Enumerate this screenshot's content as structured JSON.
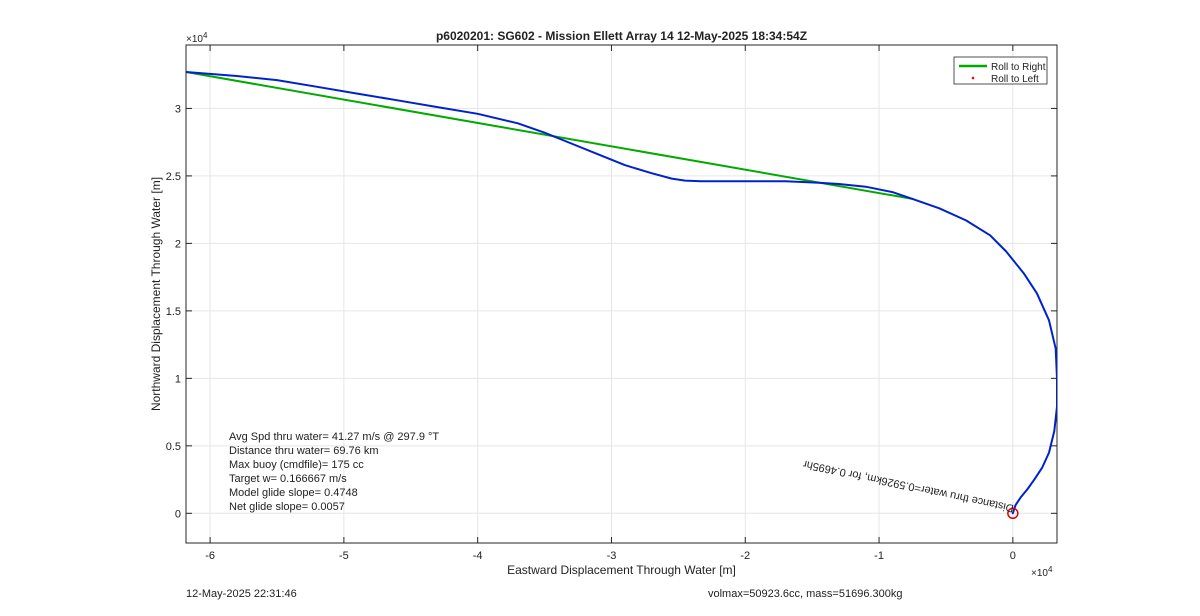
{
  "chart_data": {
    "type": "line",
    "title": "p6020201: SG602 - Mission Ellett Array 14 12-May-2025 18:34:54Z",
    "xlabel": "Eastward Displacement Through Water [m]",
    "ylabel": "Northward Displacement Through Water [m]",
    "x_exponent": "×10",
    "x_exponent_power": "4",
    "y_exponent": "×10",
    "y_exponent_power": "4",
    "xlim": [
      -61800,
      3300
    ],
    "ylim": [
      -2200,
      34700
    ],
    "x_ticks": [
      -60000,
      -50000,
      -40000,
      -30000,
      -20000,
      -10000,
      0
    ],
    "x_tick_labels": [
      "-6",
      "-5",
      "-4",
      "-3",
      "-2",
      "-1",
      "0"
    ],
    "y_ticks": [
      0,
      5000,
      10000,
      15000,
      20000,
      25000,
      30000
    ],
    "y_tick_labels": [
      "0",
      "0.5",
      "1",
      "1.5",
      "2",
      "2.5",
      "3"
    ],
    "grid": true,
    "legend_position": "top-right",
    "legend": [
      {
        "label": "Roll to Right",
        "color": "#00aa00",
        "style": "line"
      },
      {
        "label": "Roll to Left",
        "color": "#ff0000",
        "style": "dot"
      }
    ],
    "series": [
      {
        "name": "Roll to Right",
        "color": "#00aa00",
        "x": [
          -61800,
          -7500
        ],
        "y": [
          32700,
          23300
        ]
      },
      {
        "color": "#0022cc",
        "x": [
          -61800,
          -58000,
          -55000,
          -52000,
          -49000,
          -46000,
          -43000,
          -40000,
          -37000,
          -35000,
          -33000,
          -31000,
          -29000,
          -27000,
          -25500,
          -24500,
          -23300,
          -20000,
          -17000,
          -14500,
          -13000,
          -11000,
          -9000,
          -7500,
          -5500,
          -3500,
          -1700,
          -500,
          800,
          1800,
          2700,
          3200,
          3300,
          3300,
          3100,
          2700,
          2200,
          1600,
          1100,
          600,
          200,
          0
        ],
        "y": [
          32700,
          32400,
          32100,
          31600,
          31100,
          30600,
          30100,
          29600,
          28900,
          28200,
          27400,
          26600,
          25800,
          25200,
          24800,
          24650,
          24600,
          24600,
          24600,
          24500,
          24400,
          24200,
          23800,
          23300,
          22600,
          21700,
          20600,
          19400,
          17800,
          16300,
          14300,
          12200,
          10000,
          7900,
          6100,
          4500,
          3400,
          2500,
          1800,
          1200,
          600,
          0
        ]
      }
    ],
    "end_marker": {
      "x": 0,
      "y": 0,
      "color": "#dd0000"
    },
    "annotation": {
      "text": "Distance thru water=0.5926km, for 0.4695hr",
      "x": 100,
      "y": 600
    },
    "stats": [
      "Avg Spd thru water= 41.27 m/s @ 297.9 °T",
      "Distance thru water= 69.76 km",
      "Max buoy (cmdfile)= 175 cc",
      "Target w= 0.166667 m/s",
      "Model glide slope= 0.4748",
      "Net glide slope= 0.0057"
    ]
  },
  "footer": {
    "timestamp": "12-May-2025 22:31:46",
    "vol_mass": "volmax=50923.6cc, mass=51696.300kg"
  }
}
